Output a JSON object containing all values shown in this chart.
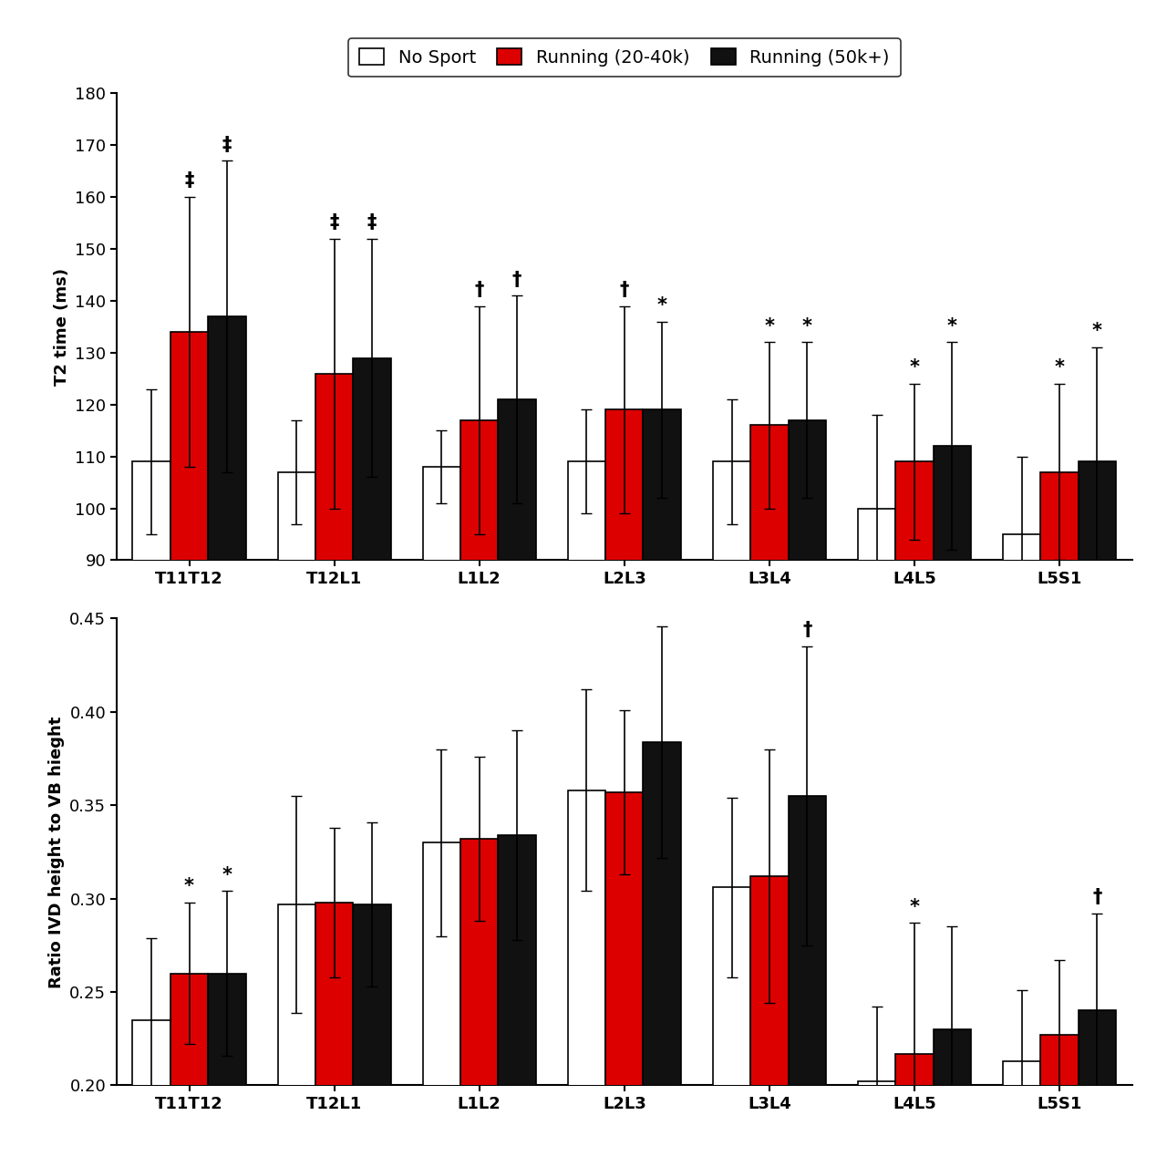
{
  "categories": [
    "T11T12",
    "T12L1",
    "L1L2",
    "L2L3",
    "L3L4",
    "L4L5",
    "L5S1"
  ],
  "top_chart": {
    "ylabel": "T2 time (ms)",
    "ylim": [
      90,
      180
    ],
    "yticks": [
      90,
      100,
      110,
      120,
      130,
      140,
      150,
      160,
      170,
      180
    ],
    "no_sport_vals": [
      109,
      107,
      108,
      109,
      109,
      100,
      95
    ],
    "running20_vals": [
      134,
      126,
      117,
      119,
      116,
      109,
      107
    ],
    "running50_vals": [
      137,
      129,
      121,
      119,
      117,
      112,
      109
    ],
    "no_sport_err": [
      14,
      10,
      7,
      10,
      12,
      18,
      15
    ],
    "running20_err": [
      26,
      26,
      22,
      20,
      16,
      15,
      17
    ],
    "running50_err": [
      30,
      23,
      20,
      17,
      15,
      20,
      22
    ],
    "no_sport_sig": [
      "",
      "",
      "",
      "",
      "",
      "",
      ""
    ],
    "running20_sig": [
      "‡",
      "‡",
      "†",
      "†",
      "*",
      "*",
      "*"
    ],
    "running50_sig": [
      "‡",
      "‡",
      "†",
      "*",
      "*",
      "*",
      "*"
    ]
  },
  "bottom_chart": {
    "ylabel": "Ratio IVD height to VB hieght",
    "ylim": [
      0.2,
      0.45
    ],
    "yticks": [
      0.2,
      0.25,
      0.3,
      0.35,
      0.4,
      0.45
    ],
    "no_sport_vals": [
      0.235,
      0.297,
      0.33,
      0.358,
      0.306,
      0.202,
      0.213
    ],
    "running20_vals": [
      0.26,
      0.298,
      0.332,
      0.357,
      0.312,
      0.217,
      0.227
    ],
    "running50_vals": [
      0.26,
      0.297,
      0.334,
      0.384,
      0.355,
      0.23,
      0.24
    ],
    "no_sport_err": [
      0.044,
      0.058,
      0.05,
      0.054,
      0.048,
      0.04,
      0.038
    ],
    "running20_err": [
      0.038,
      0.04,
      0.044,
      0.044,
      0.068,
      0.07,
      0.04
    ],
    "running50_err": [
      0.044,
      0.044,
      0.056,
      0.062,
      0.08,
      0.055,
      0.052
    ],
    "no_sport_sig": [
      "",
      "",
      "",
      "",
      "",
      "",
      ""
    ],
    "running20_sig": [
      "*",
      "",
      "",
      "",
      "",
      "*",
      ""
    ],
    "running50_sig": [
      "*",
      "",
      "",
      "",
      "†",
      "",
      "†"
    ]
  },
  "colors": {
    "no_sport": "#ffffff",
    "running20": "#dd0000",
    "running50": "#111111"
  },
  "legend_labels": [
    "No Sport",
    "Running (20-40k)",
    "Running (50k+)"
  ],
  "bar_width": 0.26,
  "edgecolor": "#000000"
}
